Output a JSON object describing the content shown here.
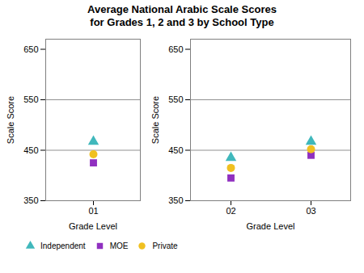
{
  "chart_data": [
    {
      "type": "scatter",
      "title": "Average National Arabic Scale Scores",
      "subtitle": "for Grades 1, 2 and 3 by School Type",
      "xlabel": "Grade Level",
      "ylabel": "Scale Score",
      "categories": [
        "01"
      ],
      "series": [
        {
          "name": "Independent",
          "color": "#40b8bc",
          "marker": "triangle",
          "values": [
            467
          ]
        },
        {
          "name": "MOE",
          "color": "#9030c0",
          "marker": "square",
          "values": [
            425
          ]
        },
        {
          "name": "Private",
          "color": "#f0c020",
          "marker": "circle",
          "values": [
            442
          ]
        }
      ],
      "ylim": [
        350,
        670
      ],
      "yticks": [
        350,
        450,
        550,
        650
      ],
      "hlines": [
        450,
        550
      ],
      "legend": "bottom left"
    },
    {
      "type": "scatter",
      "xlabel": "Grade Level",
      "ylabel": "Scale Score",
      "categories": [
        "02",
        "03"
      ],
      "series": [
        {
          "name": "Independent",
          "color": "#40b8bc",
          "marker": "triangle",
          "values": [
            435,
            467
          ]
        },
        {
          "name": "MOE",
          "color": "#9030c0",
          "marker": "square",
          "values": [
            395,
            440
          ]
        },
        {
          "name": "Private",
          "color": "#f0c020",
          "marker": "circle",
          "values": [
            415,
            452
          ]
        }
      ],
      "ylim": [
        350,
        670
      ],
      "yticks": [
        350,
        450,
        550,
        650
      ],
      "hlines": [
        450,
        550
      ]
    }
  ]
}
